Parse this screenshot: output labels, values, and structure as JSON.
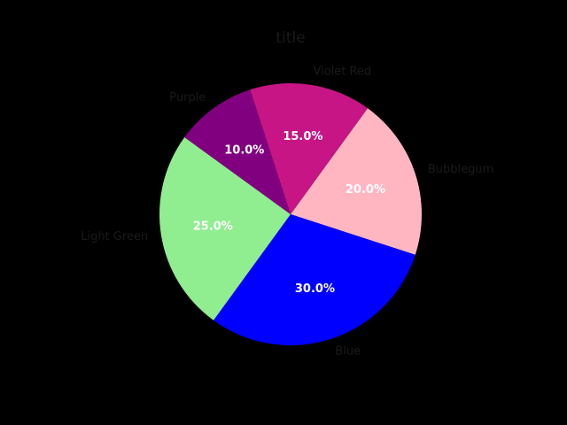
{
  "chart_data": {
    "type": "pie",
    "title": "title",
    "categories": [
      "Bubblegum",
      "Blue",
      "Light Green",
      "Purple",
      "Violet Red"
    ],
    "values": [
      20.0,
      30.0,
      25.0,
      10.0,
      15.0
    ],
    "percent_labels": [
      "20.0%",
      "30.0%",
      "25.0%",
      "10.0%",
      "15.0%"
    ],
    "colors": [
      "#ffb6c1",
      "#0000ff",
      "#90ee90",
      "#800080",
      "#c71585"
    ],
    "start_angle_deg": 54,
    "direction": "clockwise"
  }
}
